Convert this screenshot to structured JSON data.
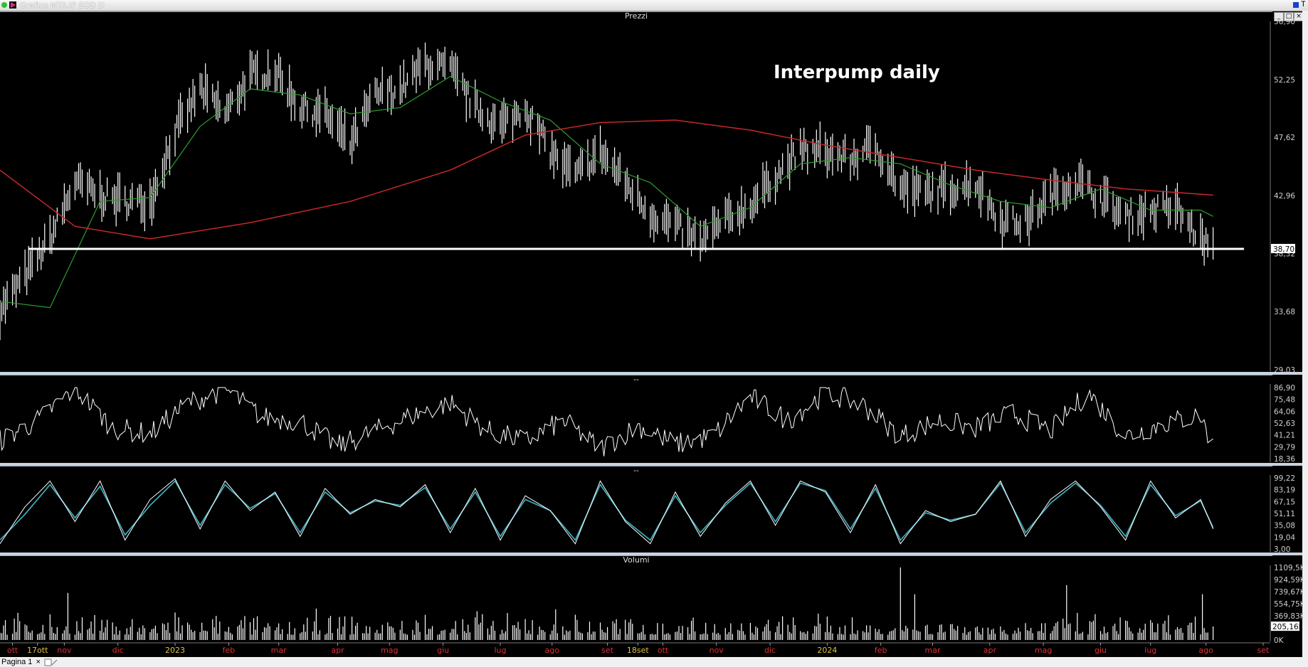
{
  "window": {
    "title": "Grafico MTA.IP EOD D",
    "controls": [
      "_",
      "□",
      "×"
    ]
  },
  "status_bar": {
    "page_tab": "Pagina 1",
    "close": "×"
  },
  "panes": {
    "price": "Prezzi",
    "osc1": "--",
    "osc2": "--",
    "volume": "Volumi"
  },
  "colors": {
    "price_bars": "#ffffff",
    "ma_short": "#2e9e2e",
    "ma_long": "#c62828",
    "stoch_k": "#ffffff",
    "stoch_d": "#3fb6c8",
    "support_line": "#ffffff",
    "month_labels": "#e03030",
    "year_labels": "#e0c040"
  },
  "chart_data": [
    {
      "type": "line",
      "pane": "Prezzi",
      "title": "Interpump daily",
      "y_ticks": [
        "56,90",
        "52,25",
        "47,62",
        "42,96",
        "38,70",
        "38,32",
        "33,68",
        "29,03"
      ],
      "ylim": [
        29.03,
        56.9
      ],
      "price_marker": "38,70",
      "support_level": 38.7,
      "series": [
        {
          "kind": "close",
          "x": [
            "2022-09-26",
            "2022-10-10",
            "2022-10-24",
            "2022-11-07",
            "2022-11-21",
            "2022-12-05",
            "2022-12-19",
            "2023-01-02",
            "2023-01-16",
            "2023-01-30",
            "2023-02-13",
            "2023-02-27",
            "2023-03-13",
            "2023-03-27",
            "2023-04-10",
            "2023-04-24",
            "2023-05-08",
            "2023-05-22",
            "2023-06-05",
            "2023-06-19",
            "2023-07-03",
            "2023-07-17",
            "2023-07-31",
            "2023-08-14",
            "2023-08-28",
            "2023-09-11",
            "2023-09-25",
            "2023-10-09",
            "2023-10-23",
            "2023-11-06",
            "2023-11-20",
            "2023-12-04",
            "2023-12-18",
            "2024-01-01",
            "2024-01-15",
            "2024-01-29",
            "2024-02-12",
            "2024-02-26",
            "2024-03-11",
            "2024-03-25",
            "2024-04-08",
            "2024-04-22",
            "2024-05-06",
            "2024-05-20",
            "2024-06-03",
            "2024-06-17",
            "2024-07-01",
            "2024-07-15",
            "2024-07-29",
            "2024-08-05"
          ],
          "values": [
            33.8,
            36.5,
            39.5,
            44.0,
            43.0,
            42.5,
            42.5,
            48.0,
            51.5,
            49.5,
            52.5,
            53.0,
            50.0,
            49.5,
            47.0,
            51.0,
            51.5,
            53.5,
            53.0,
            50.0,
            48.5,
            50.0,
            46.5,
            44.5,
            46.5,
            44.0,
            41.5,
            40.5,
            39.2,
            41.0,
            42.2,
            44.5,
            46.5,
            46.5,
            45.8,
            47.0,
            43.5,
            43.2,
            43.5,
            44.0,
            41.0,
            40.8,
            43.0,
            44.2,
            42.8,
            41.2,
            41.8,
            42.0,
            39.5,
            38.7
          ]
        },
        {
          "kind": "moving-average-short",
          "x": [
            "2022-09-26",
            "2022-10-24",
            "2022-11-21",
            "2022-12-19",
            "2023-01-16",
            "2023-02-13",
            "2023-03-13",
            "2023-04-10",
            "2023-05-08",
            "2023-06-05",
            "2023-07-03",
            "2023-07-31",
            "2023-08-28",
            "2023-09-25",
            "2023-10-23",
            "2023-11-20",
            "2023-12-18",
            "2024-01-15",
            "2024-02-12",
            "2024-03-11",
            "2024-04-08",
            "2024-05-06",
            "2024-06-03",
            "2024-07-01",
            "2024-07-29",
            "2024-08-05"
          ],
          "values": [
            34.5,
            34.0,
            42.5,
            42.8,
            48.5,
            51.5,
            51.0,
            49.5,
            50.0,
            52.5,
            50.5,
            49.0,
            45.5,
            44.0,
            40.5,
            42.0,
            45.5,
            46.0,
            45.5,
            43.8,
            42.5,
            42.0,
            43.5,
            41.8,
            41.8,
            41.3
          ]
        },
        {
          "kind": "moving-average-long",
          "x": [
            "2022-09-26",
            "2022-11-07",
            "2022-12-19",
            "2023-02-13",
            "2023-04-10",
            "2023-06-05",
            "2023-07-17",
            "2023-08-28",
            "2023-10-09",
            "2023-11-20",
            "2024-01-01",
            "2024-02-12",
            "2024-03-25",
            "2024-05-06",
            "2024-06-17",
            "2024-08-05"
          ],
          "values": [
            45.0,
            40.5,
            39.5,
            40.8,
            42.5,
            45.0,
            47.8,
            48.8,
            49.0,
            48.2,
            47.0,
            46.0,
            45.0,
            44.2,
            43.5,
            43.0
          ]
        }
      ],
      "x_labels": [
        {
          "text": "ott",
          "date": "2022-10-03",
          "kind": "month"
        },
        {
          "text": "17ott",
          "date": "2022-10-17",
          "kind": "year"
        },
        {
          "text": "nov",
          "date": "2022-11-01",
          "kind": "month"
        },
        {
          "text": "dic",
          "date": "2022-12-01",
          "kind": "month"
        },
        {
          "text": "2023",
          "date": "2023-01-02",
          "kind": "year"
        },
        {
          "text": "feb",
          "date": "2023-02-01",
          "kind": "month"
        },
        {
          "text": "mar",
          "date": "2023-03-01",
          "kind": "month"
        },
        {
          "text": "apr",
          "date": "2023-04-03",
          "kind": "month"
        },
        {
          "text": "mag",
          "date": "2023-05-02",
          "kind": "month"
        },
        {
          "text": "giu",
          "date": "2023-06-01",
          "kind": "month"
        },
        {
          "text": "lug",
          "date": "2023-07-03",
          "kind": "month"
        },
        {
          "text": "ago",
          "date": "2023-08-01",
          "kind": "month"
        },
        {
          "text": "set",
          "date": "2023-09-01",
          "kind": "month"
        },
        {
          "text": "18set",
          "date": "2023-09-18",
          "kind": "year"
        },
        {
          "text": "ott",
          "date": "2023-10-02",
          "kind": "month"
        },
        {
          "text": "nov",
          "date": "2023-11-01",
          "kind": "month"
        },
        {
          "text": "dic",
          "date": "2023-12-01",
          "kind": "month"
        },
        {
          "text": "2024",
          "date": "2024-01-02",
          "kind": "year"
        },
        {
          "text": "feb",
          "date": "2024-02-01",
          "kind": "month"
        },
        {
          "text": "mar",
          "date": "2024-03-01",
          "kind": "month"
        },
        {
          "text": "apr",
          "date": "2024-04-02",
          "kind": "month"
        },
        {
          "text": "mag",
          "date": "2024-05-02",
          "kind": "month"
        },
        {
          "text": "giu",
          "date": "2024-06-03",
          "kind": "month"
        },
        {
          "text": "lug",
          "date": "2024-07-01",
          "kind": "month"
        },
        {
          "text": "ago",
          "date": "2024-08-01",
          "kind": "month"
        },
        {
          "text": "set",
          "date": "2024-09-02",
          "kind": "month"
        }
      ],
      "x_range": [
        "2022-09-26",
        "2024-09-06"
      ]
    },
    {
      "type": "line",
      "pane": "--",
      "y_ticks": [
        "86,90",
        "75,48",
        "64,06",
        "52,63",
        "41,21",
        "29,79",
        "18,36"
      ],
      "ylim": [
        18.36,
        86.9
      ],
      "series": [
        {
          "x": [
            "2022-09-26",
            "2022-10-17",
            "2022-11-07",
            "2022-11-28",
            "2022-12-19",
            "2023-01-09",
            "2023-01-30",
            "2023-02-20",
            "2023-03-13",
            "2023-04-03",
            "2023-04-24",
            "2023-05-15",
            "2023-06-05",
            "2023-06-26",
            "2023-07-17",
            "2023-08-07",
            "2023-08-28",
            "2023-09-18",
            "2023-10-09",
            "2023-10-30",
            "2023-11-20",
            "2023-12-11",
            "2024-01-01",
            "2024-01-22",
            "2024-02-12",
            "2024-03-04",
            "2024-03-25",
            "2024-04-15",
            "2024-05-06",
            "2024-05-27",
            "2024-06-17",
            "2024-07-08",
            "2024-07-29",
            "2024-08-05"
          ],
          "values": [
            36,
            55,
            86,
            48,
            42,
            72,
            85,
            58,
            55,
            30,
            45,
            60,
            72,
            45,
            35,
            55,
            28,
            50,
            32,
            40,
            78,
            55,
            82,
            70,
            40,
            55,
            48,
            62,
            45,
            82,
            40,
            52,
            60,
            30
          ]
        }
      ]
    },
    {
      "type": "line",
      "pane": "--",
      "y_ticks": [
        "99,22",
        "83,19",
        "67,15",
        "51,11",
        "35,08",
        "19,04",
        "3,00"
      ],
      "ylim": [
        3.0,
        99.22
      ],
      "series": [
        {
          "kind": "stoch-k",
          "x": [
            "2022-09-26",
            "2022-10-10",
            "2022-10-24",
            "2022-11-07",
            "2022-11-21",
            "2022-12-05",
            "2022-12-19",
            "2023-01-02",
            "2023-01-16",
            "2023-01-30",
            "2023-02-13",
            "2023-02-27",
            "2023-03-13",
            "2023-03-27",
            "2023-04-10",
            "2023-04-24",
            "2023-05-08",
            "2023-05-22",
            "2023-06-05",
            "2023-06-19",
            "2023-07-03",
            "2023-07-17",
            "2023-07-31",
            "2023-08-14",
            "2023-08-28",
            "2023-09-11",
            "2023-09-25",
            "2023-10-09",
            "2023-10-23",
            "2023-11-06",
            "2023-11-20",
            "2023-12-04",
            "2023-12-18",
            "2024-01-01",
            "2024-01-15",
            "2024-01-29",
            "2024-02-12",
            "2024-02-26",
            "2024-03-11",
            "2024-03-25",
            "2024-04-08",
            "2024-04-22",
            "2024-05-06",
            "2024-05-20",
            "2024-06-03",
            "2024-06-17",
            "2024-07-01",
            "2024-07-15",
            "2024-07-29",
            "2024-08-05"
          ],
          "values": [
            10,
            60,
            95,
            40,
            95,
            15,
            70,
            98,
            30,
            95,
            55,
            80,
            20,
            85,
            50,
            70,
            60,
            90,
            25,
            85,
            15,
            75,
            55,
            10,
            95,
            40,
            10,
            80,
            20,
            65,
            95,
            35,
            95,
            80,
            25,
            90,
            10,
            55,
            40,
            50,
            95,
            20,
            70,
            95,
            60,
            15,
            95,
            45,
            70,
            30
          ]
        },
        {
          "kind": "stoch-d",
          "x": [
            "2022-09-26",
            "2022-10-10",
            "2022-10-24",
            "2022-11-07",
            "2022-11-21",
            "2022-12-05",
            "2022-12-19",
            "2023-01-02",
            "2023-01-16",
            "2023-01-30",
            "2023-02-13",
            "2023-02-27",
            "2023-03-13",
            "2023-03-27",
            "2023-04-10",
            "2023-04-24",
            "2023-05-08",
            "2023-05-22",
            "2023-06-05",
            "2023-06-19",
            "2023-07-03",
            "2023-07-17",
            "2023-07-31",
            "2023-08-14",
            "2023-08-28",
            "2023-09-11",
            "2023-09-25",
            "2023-10-09",
            "2023-10-23",
            "2023-11-06",
            "2023-11-20",
            "2023-12-04",
            "2023-12-18",
            "2024-01-01",
            "2024-01-15",
            "2024-01-29",
            "2024-02-12",
            "2024-02-26",
            "2024-03-11",
            "2024-03-25",
            "2024-04-08",
            "2024-04-22",
            "2024-05-06",
            "2024-05-20",
            "2024-06-03",
            "2024-06-17",
            "2024-07-01",
            "2024-07-15",
            "2024-07-29",
            "2024-08-05"
          ],
          "values": [
            15,
            50,
            90,
            45,
            88,
            22,
            62,
            95,
            35,
            90,
            58,
            78,
            25,
            80,
            52,
            68,
            62,
            86,
            30,
            80,
            20,
            70,
            55,
            15,
            90,
            42,
            15,
            75,
            25,
            62,
            92,
            40,
            92,
            82,
            30,
            85,
            15,
            52,
            42,
            50,
            92,
            25,
            65,
            92,
            62,
            20,
            90,
            48,
            68,
            32
          ]
        }
      ]
    },
    {
      "type": "bar",
      "pane": "Volumi",
      "y_ticks": [
        "1109,5K",
        "924,59K",
        "739,67K",
        "554,75K",
        "369,83K",
        "205,16K",
        "0K"
      ],
      "ylim": [
        0,
        1109.5
      ],
      "highlighted_value": "205,16K",
      "volume_spikes": [
        {
          "date": "2022-11-03",
          "value": 720
        },
        {
          "date": "2023-01-02",
          "value": 420
        },
        {
          "date": "2023-03-22",
          "value": 480
        },
        {
          "date": "2023-06-20",
          "value": 440
        },
        {
          "date": "2023-08-03",
          "value": 470
        },
        {
          "date": "2024-02-12",
          "value": 1109
        },
        {
          "date": "2024-02-20",
          "value": 700
        },
        {
          "date": "2024-05-15",
          "value": 840
        },
        {
          "date": "2024-07-30",
          "value": 700
        }
      ],
      "typical_range": [
        80,
        360
      ]
    }
  ]
}
